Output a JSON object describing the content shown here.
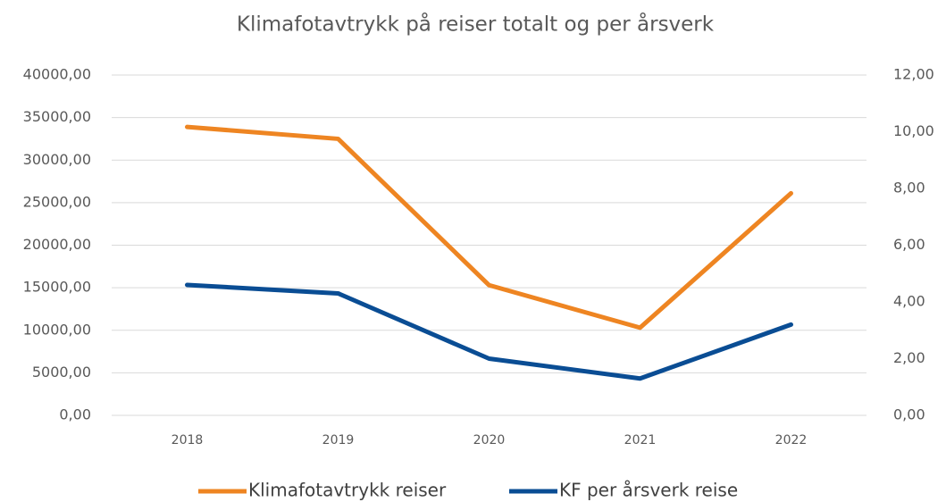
{
  "chart_data": {
    "type": "line",
    "title": "Klimafotavtrykk på reiser totalt og per årsverk",
    "categories": [
      "2018",
      "2019",
      "2020",
      "2021",
      "2022"
    ],
    "series": [
      {
        "name": "Klimafotavtrykk reiser",
        "color": "#ee8522",
        "values": [
          33900,
          32500,
          15300,
          10300,
          26100
        ]
      },
      {
        "name": "KF per årsverk reise",
        "color": "#0a4d94",
        "axis": "y2",
        "values": [
          4.6,
          4.3,
          2.0,
          1.3,
          3.2
        ]
      }
    ],
    "ylim": [
      0,
      40000
    ],
    "yticks": [
      {
        "value": 0,
        "label": "0,00"
      },
      {
        "value": 5000,
        "label": "5000,00"
      },
      {
        "value": 10000,
        "label": "10000,00"
      },
      {
        "value": 15000,
        "label": "15000,00"
      },
      {
        "value": 20000,
        "label": "20000,00"
      },
      {
        "value": 25000,
        "label": "25000,00"
      },
      {
        "value": 30000,
        "label": "30000,00"
      },
      {
        "value": 35000,
        "label": "35000,00"
      },
      {
        "value": 40000,
        "label": "40000,00"
      }
    ],
    "y2lim": [
      0,
      12
    ],
    "y2ticks": [
      {
        "value": 0,
        "label": "0,00"
      },
      {
        "value": 2,
        "label": "2,00"
      },
      {
        "value": 4,
        "label": "4,00"
      },
      {
        "value": 6,
        "label": "6,00"
      },
      {
        "value": 8,
        "label": "8,00"
      },
      {
        "value": 10,
        "label": "10,00"
      },
      {
        "value": 12,
        "label": "12,00"
      }
    ],
    "grid": true,
    "legend": "bottom"
  }
}
